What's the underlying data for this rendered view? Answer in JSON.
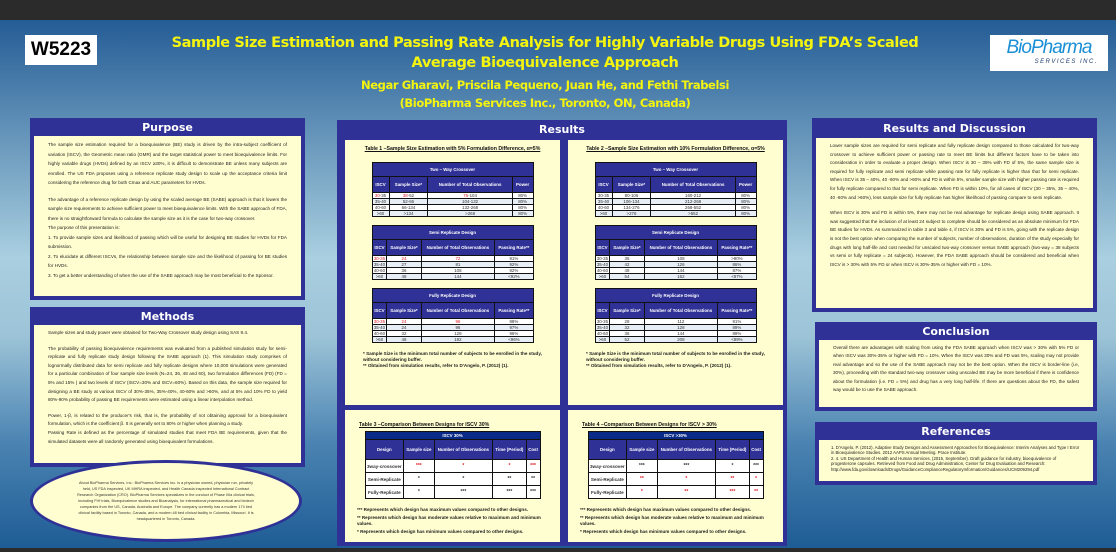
{
  "header": {
    "code": "W5223",
    "title_line1": "Sample Size Estimation and Passing Rate Analysis for Highly Variable Drugs Using FDA’s Scaled",
    "title_line2": "Average Bioequivalence Approach",
    "authors": "Negar Gharavi, Priscila Pequeno,  Juan He, and Fethi Trabelsi",
    "affiliation": "(BioPharma Services Inc., Toronto, ON, Canada)",
    "logo_main": "BioPharma",
    "logo_sub": "SERVICES INC."
  },
  "purpose": {
    "title": "Purpose",
    "p1": "The sample size estimation required for a bioequivalence (BE) study is driven by the intra-subject coefficient of variation (ISCV), the Geometric mean ratio (GMR) and the target statistical power to meet bioequivalence limits. For highly variable drugs (HVDs) defined by an ISCV ≥30%, it is difficult to demonstrate BE unless many subjects are enrolled. The US FDA proposes using a reference replicate study design to scale up the acceptance criteria limit considering the reference drug for both Cmax and AUC parameters for HVDs.",
    "p2": "The advantage of a reference replicate design by using the scaled average BE (SABE) approach is that it lowers the sample size requirements to achieve sufficient power to meet bioequivalence limits. With the SABE approach of FDA, there is no straightforward formula to calculate the sample size as it is the case for two-way crossover.",
    "intro": "The purpose of this presentation is:",
    "items": [
      "1. To provide sample sizes and likelihood of passing which will be useful for designing BE studies for HVDs for FDA submission.",
      "2. To elucidate at different ISCVs, the relationship between sample size and the likelihood of passing for BE studies for HVDs.",
      "3. To get a better understanding of when the use of the SABE approach may be most beneficial to the Sponsor."
    ]
  },
  "methods": {
    "title": "Methods",
    "p1": "Sample sizes and study power were obtained for Two-Way Crossover study design using SAS 9.4.",
    "p2": "The probability of passing bioequivalence requirements was evaluated from a published simulation study for semi-replicate and fully replicate study design following the SABE approach (1). This simulation study comprises of lognormally distributed data for semi replicate and fully replicate designs where 10,000 simulations were generated for a particular combination of four sample size levels (N=24, 36, 48 and 60), two formulation differences (FD) (FD = 5% and 15% ) and two levels of ISCV (ISCV=30% and ISCV=60%). Based on this data, the sample size required for designing a BE study at various ISCV of 30%-35%, 35%-40%, 40-60% and >60%, and at 5% and 10% FD to yield 80%-90% probability of passing BE requirements were estimated using a linear interpolation method.",
    "p3": "Power, 1-β, is related to the producer's risk, that is, the probability of not obtaining approval for a bioequivalent formulation, which is the coefficient β. It is generally set to 80% or higher when planning a study.",
    "p4": "Passing Rate is defined as the percentage of simulated studies that meet FDA BE requirements, given that the simulated datasets were all randomly generated using bioequivalent formulations."
  },
  "about": "About BioPharma Services, Inc.: BioPharma Services Inc. is a physician owned, physician run, privately held, US FDA inspected, UK MHRA inspected, and Health Canada inspected International Contract Research Organization (CRO).  BioPharma Services specializes in the conduct of Phase I/IIa clinical trials, including FIH trials, Bioequivalence studies and Bioanalysis, for international pharmaceutical and biotech companies from the US, Canada, Australia and Europe.  The company currently has a modern 174 bed clinical facility based in Toronto, Canada, and a modern 48 bed clinical facility in Columbia, Missouri. It is headquartered in Toronto, Canada.",
  "results": {
    "title": "Results",
    "tables": [
      {
        "title": "Table 1 –Sample Size Estimation with 5% Formulation Difference, α=5%",
        "blocks": [
          {
            "caption": "Two – Way Crossover",
            "headers": [
              "ISCV",
              "Sample Size*",
              "Number of Total Observations",
              "Power"
            ],
            "rows": [
              [
                [
                  "30",
                  "-35"
                ],
                [
                  "38",
                  "-52"
                ],
                [
                  "76",
                  "-104"
                ],
                [
                  "",
                  "80%"
                ]
              ],
              [
                [
                  "",
                  "35-40"
                ],
                [
                  "",
                  "52-66"
                ],
                [
                  "",
                  "104-132"
                ],
                [
                  "",
                  "80%"
                ]
              ],
              [
                [
                  "",
                  "40-60"
                ],
                [
                  "",
                  "66-134"
                ],
                [
                  "",
                  "132-268"
                ],
                [
                  "",
                  "80%"
                ]
              ],
              [
                [
                  "",
                  ">60"
                ],
                [
                  "",
                  ">134"
                ],
                [
                  "",
                  ">268"
                ],
                [
                  "",
                  "80%"
                ]
              ]
            ]
          },
          {
            "caption": "Semi Replicate Design",
            "headers": [
              "ISCV",
              "Sample Size*",
              "Number of Total Observations",
              "Passing Rate**"
            ],
            "rows": [
              [
                [
                  "30-35",
                  ""
                ],
                [
                  "24",
                  ""
                ],
                [
                  "72",
                  ""
                ],
                [
                  "",
                  "91%"
                ]
              ],
              [
                [
                  "",
                  "35-40"
                ],
                [
                  "",
                  "27"
                ],
                [
                  "",
                  "81"
                ],
                [
                  "",
                  "92%"
                ]
              ],
              [
                [
                  "",
                  "40-60"
                ],
                [
                  "",
                  "36"
                ],
                [
                  "",
                  "108"
                ],
                [
                  "",
                  "92%"
                ]
              ],
              [
                [
                  "",
                  ">60"
                ],
                [
                  "",
                  "48"
                ],
                [
                  "",
                  "144"
                ],
                [
                  "",
                  "<92%"
                ]
              ]
            ]
          },
          {
            "caption": "Fully Replicate Design",
            "headers": [
              "ISCV",
              "Sample Size*",
              "Number of Total Observations",
              "Passing Rate**"
            ],
            "rows": [
              [
                [
                  "30-35",
                  ""
                ],
                [
                  "24",
                  ""
                ],
                [
                  "96",
                  ""
                ],
                [
                  "",
                  "98%"
                ]
              ],
              [
                [
                  "",
                  "35-40"
                ],
                [
                  "",
                  "24"
                ],
                [
                  "",
                  "96"
                ],
                [
                  "",
                  "97%"
                ]
              ],
              [
                [
                  "",
                  "40-60"
                ],
                [
                  "",
                  "32"
                ],
                [
                  "",
                  "128"
                ],
                [
                  "",
                  "96%"
                ]
              ],
              [
                [
                  "",
                  ">60"
                ],
                [
                  "",
                  "48"
                ],
                [
                  "",
                  "192"
                ],
                [
                  "",
                  "<96%"
                ]
              ]
            ]
          }
        ]
      },
      {
        "title": "Table 2 –Sample Size Estimation with 10% Formulation Difference, α=5%",
        "blocks": [
          {
            "caption": "Two – Way Crossover",
            "headers": [
              "ISCV",
              "Sample Size*",
              "Number of Total Observations",
              "Power"
            ],
            "rows": [
              [
                [
                  "",
                  "30-35"
                ],
                [
                  "",
                  "80-106"
                ],
                [
                  "",
                  "160-212"
                ],
                [
                  "",
                  "80%"
                ]
              ],
              [
                [
                  "",
                  "35-40"
                ],
                [
                  "",
                  "106-134"
                ],
                [
                  "",
                  "212-268"
                ],
                [
                  "",
                  "80%"
                ]
              ],
              [
                [
                  "",
                  "40-60"
                ],
                [
                  "",
                  "134-276"
                ],
                [
                  "",
                  "268-552"
                ],
                [
                  "",
                  "80%"
                ]
              ],
              [
                [
                  "",
                  ">60"
                ],
                [
                  "",
                  ">276"
                ],
                [
                  "",
                  ">552"
                ],
                [
                  "",
                  "80%"
                ]
              ]
            ]
          },
          {
            "caption": "Semi Replicate Design",
            "headers": [
              "ISCV",
              "Sample Size*",
              "Number of Total Observations",
              "Passing Rate**"
            ],
            "rows": [
              [
                [
                  "",
                  "30-35"
                ],
                [
                  "",
                  "36"
                ],
                [
                  "",
                  "108"
                ],
                [
                  "",
                  ">90%"
                ]
              ],
              [
                [
                  "",
                  "35-40"
                ],
                [
                  "",
                  "42"
                ],
                [
                  "",
                  "126"
                ],
                [
                  "",
                  "86%"
                ]
              ],
              [
                [
                  "",
                  "40-60"
                ],
                [
                  "",
                  "48"
                ],
                [
                  "",
                  "144"
                ],
                [
                  "",
                  "87%"
                ]
              ],
              [
                [
                  "",
                  ">60"
                ],
                [
                  "",
                  "54"
                ],
                [
                  "",
                  "162"
                ],
                [
                  "",
                  "<87%"
                ]
              ]
            ]
          },
          {
            "caption": "Fully Replicate Design",
            "headers": [
              "ISCV",
              "Sample Size*",
              "Number of Total Observations",
              "Passing Rate**"
            ],
            "rows": [
              [
                [
                  "",
                  "30-35"
                ],
                [
                  "",
                  "28"
                ],
                [
                  "",
                  "112"
                ],
                [
                  "",
                  "91%"
                ]
              ],
              [
                [
                  "",
                  "35-40"
                ],
                [
                  "",
                  "32"
                ],
                [
                  "",
                  "128"
                ],
                [
                  "",
                  "89%"
                ]
              ],
              [
                [
                  "",
                  "40-60"
                ],
                [
                  "",
                  "36"
                ],
                [
                  "",
                  "144"
                ],
                [
                  "",
                  "89%"
                ]
              ],
              [
                [
                  "",
                  ">60"
                ],
                [
                  "",
                  "52"
                ],
                [
                  "",
                  "208"
                ],
                [
                  "",
                  "<89%"
                ]
              ]
            ]
          }
        ]
      }
    ],
    "notes": [
      "* Sample Size is the minimum total number of subjects to be enrolled in the study, without considering buffer.",
      "** Obtained from simulation results, refer to D'Angelo, P. (2012) (1)."
    ],
    "comparisons": [
      {
        "title": "Table 3 –Comparison Between Designs for ISCV 30%",
        "caption": "ISCV 30%",
        "headers": [
          "Design",
          "Sample size",
          "Number of Observations",
          "Time (Period)",
          "Cost"
        ],
        "rows": [
          {
            "design": "3way-crossover",
            "red": true,
            "vals": [
              "***",
              "*",
              "*",
              "***"
            ]
          },
          {
            "design": "Semi-Replicate",
            "red": false,
            "vals": [
              "*",
              "*",
              "**",
              "**"
            ]
          },
          {
            "design": "Fully-Replicate",
            "red": false,
            "vals": [
              "*",
              "***",
              "***",
              "***"
            ]
          }
        ]
      },
      {
        "title": "Table 4 –Comparison Between Designs for ISCV > 30%",
        "caption": "ISCV >30%",
        "headers": [
          "Design",
          "Sample size",
          "Number of Observations",
          "Time (Period)",
          "Cost"
        ],
        "rows": [
          {
            "design": "3way-crossover",
            "red": false,
            "vals": [
              "***",
              "***",
              "*",
              "***"
            ]
          },
          {
            "design": "Semi-Replicate",
            "red": true,
            "vals": [
              "**",
              "*",
              "**",
              "*"
            ]
          },
          {
            "design": "Fully-Replicate",
            "red": true,
            "vals": [
              "*",
              "**",
              "***",
              "**"
            ]
          }
        ]
      }
    ],
    "legend": [
      "*** Represents which design has maximum values compared to other designs.",
      "** Represents which design has moderate values relative to maximum and minimum values.",
      "* Represents which design has minimum values compared to other designs."
    ]
  },
  "discussion": {
    "title": "Results and Discussion",
    "p1": "Lower sample sizes are required for semi replicate and fully replicate design compared to those calculated for two-way crossover to achieve sufficient power or passing rate to meet BE limits but different factors have to be taken into consideration in order to evaluate a proper design. When ISCV is 30 – 35% with FD of 5%, the same sample size is required for fully replicate and semi replicate while passing rate for fully replicate is higher than that for semi replicate. When ISCV is 35 – 40%, 40 -60% and >60% and FD is within 5%, smaller sample size with higher passing rate is required for fully replicate compared to that for semi replicate. When FD is within 10%, for all cases of ISCV (30 – 35%, 35 – 40%, 40 -60% and >60%), less sample size for fully replicate has higher likelihood of passing compare to semi replicate.",
    "p2": "When ISCV is 30% and FD is within 5%, there may not be real advantage for replicate design using SABE approach. It was suggested that the inclusion of at least 24 subject to complete should be considered as an absolute minimum for FDA BE studies for HVDs. As summarized in table 3 and table 4, if ISCV is 30% and FD is 5%, going with the replicate design is not the best option when comparing the number of subjects, number of observations, duration of the study especially for drugs with long half-life and cost needed for unscaled two-way crossover versus SABE approach (two-way = 38 subjects vs semi or fully replicate = 24 subjects). However, the FDA SABE approach should be considered and beneficial when ISCV is > 30% with 5% FD or when ISCV is 30%-35% or higher with FD = 10%."
  },
  "conclusion": {
    "title": "Conclusion",
    "text": "Overall there are advantages with scaling from using the FDA SABE approach when ISCV was > 30% with 5% FD or when ISCV was 30%-35% or higher with FD = 10%. When the ISCV was 30% and FD was 5%, scaling may not provide real advantage and so the use of the SABE approach may not be the best option. When the ISCV is border-line (i.e, 30%), proceeding with the standard two-way crossover using unscaled BE may be more beneficial if there is confidence about the formulation (i.e. FD = 5%) and drug has a very long half-life. If there are questions about the FD, the safest way would be to use the SABE approach."
  },
  "references": {
    "title": "References",
    "items": [
      "1. D'Angelo, P. (2012). Adaptive Study Designs and Assessment Approaches for Bioequivalence: Interim Analyses and Type I Error in Bioequivalence Studies. 2012 AAPS Annual Meeting. Prace Institute.",
      "2. 4. US Department of Health and Human Services. (2015, September). Draft guidance for industry, bioequivalence of progesterone capsules. Retrieved from Food and Drug Administration, Center for Drug Evaluation and Research: http://www.fda.gov/downloads/Drugs/GuidanceComplianceRegulatoryInformation/Guidances/UCM209294.pdf"
    ]
  }
}
